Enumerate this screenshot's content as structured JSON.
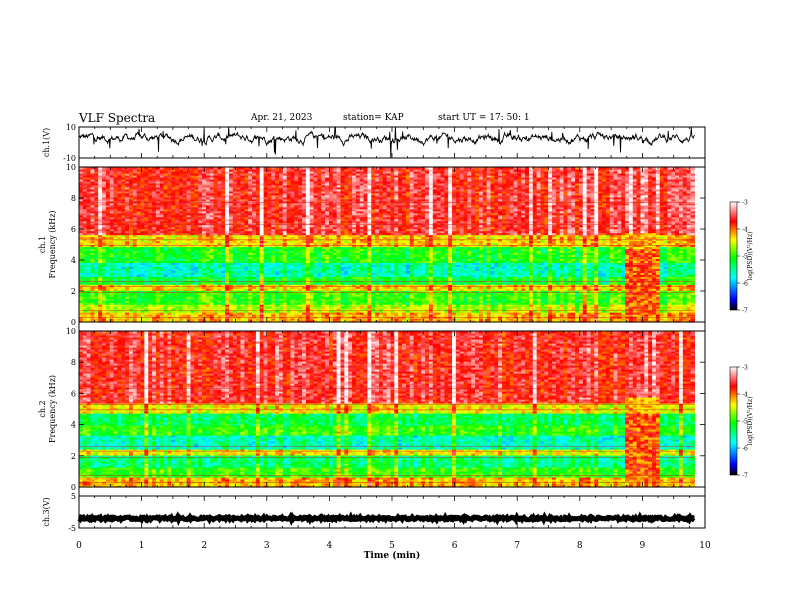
{
  "header": {
    "title": "VLF Spectra",
    "date": "Apr. 21, 2023",
    "station": "station= KAP",
    "start": "start  UT  =   17: 50: 1"
  },
  "chart_data": [
    {
      "type": "line",
      "panel": "ch1-waveform",
      "ylabel": "ch.1(V)",
      "ylim": [
        -10,
        10
      ],
      "yticks": [
        -10,
        10
      ],
      "xlim": [
        0,
        10
      ],
      "series_color": "#000000",
      "description_values": "noisy voltage trace around +3 V, amplitude roughly -10..10"
    },
    {
      "type": "heatmap",
      "panel": "ch1-spectrogram",
      "ylabel_channel": "ch.1",
      "ylabel": "Frequency  (kHz)",
      "ylim": [
        0,
        10
      ],
      "yticks": [
        0,
        2,
        4,
        6,
        8,
        10
      ],
      "xlim": [
        0,
        9.83
      ],
      "colorbar": {
        "label": "log(PSD)(V²/Hz)",
        "range": [
          -7,
          -3
        ],
        "ticks": [
          -3,
          -4,
          -5,
          -6,
          -7
        ],
        "colors": [
          "#000000",
          "#0000ff",
          "#00ffff",
          "#00ff00",
          "#ffff00",
          "#ff0000",
          "#ffffff"
        ]
      },
      "bands_khz": [
        {
          "from": 0,
          "to": 0.6,
          "level": -4.2
        },
        {
          "from": 0.6,
          "to": 1.2,
          "level": -4.6
        },
        {
          "from": 1.2,
          "to": 2.0,
          "level": -5.0
        },
        {
          "from": 2.0,
          "to": 2.4,
          "level": -4.3
        },
        {
          "from": 2.4,
          "to": 3.0,
          "level": -5.2
        },
        {
          "from": 3.0,
          "to": 3.8,
          "level": -5.6
        },
        {
          "from": 3.8,
          "to": 4.9,
          "level": -5.1
        },
        {
          "from": 4.9,
          "to": 5.6,
          "level": -4.3
        },
        {
          "from": 5.6,
          "to": 10,
          "level": -3.6
        }
      ],
      "disturbance_min": [
        8.7,
        9.3
      ]
    },
    {
      "type": "heatmap",
      "panel": "ch2-spectrogram",
      "ylabel_channel": "ch.2",
      "ylabel": "Frequency  (kHz)",
      "ylim": [
        0,
        10
      ],
      "yticks": [
        0,
        2,
        4,
        6,
        8,
        10
      ],
      "xlim": [
        0,
        9.83
      ],
      "colorbar": {
        "label": "log(PSD)(V²/Hz)",
        "range": [
          -7,
          -3
        ],
        "ticks": [
          -3,
          -4,
          -5,
          -6,
          -7
        ],
        "colors": [
          "#000000",
          "#0000ff",
          "#00ffff",
          "#00ff00",
          "#ffff00",
          "#ff0000",
          "#ffffff"
        ]
      },
      "bands_khz": [
        {
          "from": 0,
          "to": 0.6,
          "level": -4.2
        },
        {
          "from": 0.6,
          "to": 1.3,
          "level": -5.0
        },
        {
          "from": 1.3,
          "to": 2.0,
          "level": -5.4
        },
        {
          "from": 2.0,
          "to": 2.5,
          "level": -4.4
        },
        {
          "from": 2.5,
          "to": 3.3,
          "level": -5.6
        },
        {
          "from": 3.3,
          "to": 4.0,
          "level": -5.0
        },
        {
          "from": 4.0,
          "to": 4.8,
          "level": -5.3
        },
        {
          "from": 4.8,
          "to": 5.4,
          "level": -4.4
        },
        {
          "from": 5.4,
          "to": 10,
          "level": -3.6
        }
      ],
      "disturbance_min": [
        8.7,
        9.3
      ]
    },
    {
      "type": "line",
      "panel": "ch3-waveform",
      "ylabel": "ch.3(V)",
      "ylim": [
        -5,
        5
      ],
      "yticks": [
        -5,
        5
      ],
      "xlim": [
        0,
        10
      ],
      "series_color": "#000000",
      "description_values": "thick flat trace near -2 V"
    }
  ],
  "xaxis": {
    "label": "Time  (min)",
    "range": [
      0,
      10
    ],
    "ticks": [
      "0",
      "1",
      "2",
      "3",
      "4",
      "5",
      "6",
      "7",
      "8",
      "9",
      "10"
    ]
  }
}
